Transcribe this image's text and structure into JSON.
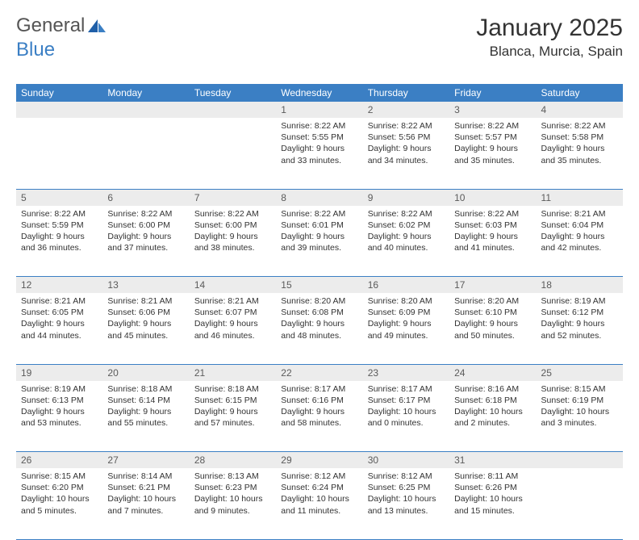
{
  "logo": {
    "word1": "General",
    "word2": "Blue"
  },
  "title": {
    "month": "January 2025",
    "location": "Blanca, Murcia, Spain"
  },
  "colors": {
    "header_bg": "#3b7fc4",
    "header_text": "#ffffff",
    "daynum_bg": "#ececec",
    "border": "#3b7fc4",
    "body_text": "#333333"
  },
  "day_headers": [
    "Sunday",
    "Monday",
    "Tuesday",
    "Wednesday",
    "Thursday",
    "Friday",
    "Saturday"
  ],
  "weeks": [
    {
      "nums": [
        "",
        "",
        "",
        "1",
        "2",
        "3",
        "4"
      ],
      "cells": [
        null,
        null,
        null,
        {
          "sunrise": "Sunrise: 8:22 AM",
          "sunset": "Sunset: 5:55 PM",
          "daylight": "Daylight: 9 hours and 33 minutes."
        },
        {
          "sunrise": "Sunrise: 8:22 AM",
          "sunset": "Sunset: 5:56 PM",
          "daylight": "Daylight: 9 hours and 34 minutes."
        },
        {
          "sunrise": "Sunrise: 8:22 AM",
          "sunset": "Sunset: 5:57 PM",
          "daylight": "Daylight: 9 hours and 35 minutes."
        },
        {
          "sunrise": "Sunrise: 8:22 AM",
          "sunset": "Sunset: 5:58 PM",
          "daylight": "Daylight: 9 hours and 35 minutes."
        }
      ]
    },
    {
      "nums": [
        "5",
        "6",
        "7",
        "8",
        "9",
        "10",
        "11"
      ],
      "cells": [
        {
          "sunrise": "Sunrise: 8:22 AM",
          "sunset": "Sunset: 5:59 PM",
          "daylight": "Daylight: 9 hours and 36 minutes."
        },
        {
          "sunrise": "Sunrise: 8:22 AM",
          "sunset": "Sunset: 6:00 PM",
          "daylight": "Daylight: 9 hours and 37 minutes."
        },
        {
          "sunrise": "Sunrise: 8:22 AM",
          "sunset": "Sunset: 6:00 PM",
          "daylight": "Daylight: 9 hours and 38 minutes."
        },
        {
          "sunrise": "Sunrise: 8:22 AM",
          "sunset": "Sunset: 6:01 PM",
          "daylight": "Daylight: 9 hours and 39 minutes."
        },
        {
          "sunrise": "Sunrise: 8:22 AM",
          "sunset": "Sunset: 6:02 PM",
          "daylight": "Daylight: 9 hours and 40 minutes."
        },
        {
          "sunrise": "Sunrise: 8:22 AM",
          "sunset": "Sunset: 6:03 PM",
          "daylight": "Daylight: 9 hours and 41 minutes."
        },
        {
          "sunrise": "Sunrise: 8:21 AM",
          "sunset": "Sunset: 6:04 PM",
          "daylight": "Daylight: 9 hours and 42 minutes."
        }
      ]
    },
    {
      "nums": [
        "12",
        "13",
        "14",
        "15",
        "16",
        "17",
        "18"
      ],
      "cells": [
        {
          "sunrise": "Sunrise: 8:21 AM",
          "sunset": "Sunset: 6:05 PM",
          "daylight": "Daylight: 9 hours and 44 minutes."
        },
        {
          "sunrise": "Sunrise: 8:21 AM",
          "sunset": "Sunset: 6:06 PM",
          "daylight": "Daylight: 9 hours and 45 minutes."
        },
        {
          "sunrise": "Sunrise: 8:21 AM",
          "sunset": "Sunset: 6:07 PM",
          "daylight": "Daylight: 9 hours and 46 minutes."
        },
        {
          "sunrise": "Sunrise: 8:20 AM",
          "sunset": "Sunset: 6:08 PM",
          "daylight": "Daylight: 9 hours and 48 minutes."
        },
        {
          "sunrise": "Sunrise: 8:20 AM",
          "sunset": "Sunset: 6:09 PM",
          "daylight": "Daylight: 9 hours and 49 minutes."
        },
        {
          "sunrise": "Sunrise: 8:20 AM",
          "sunset": "Sunset: 6:10 PM",
          "daylight": "Daylight: 9 hours and 50 minutes."
        },
        {
          "sunrise": "Sunrise: 8:19 AM",
          "sunset": "Sunset: 6:12 PM",
          "daylight": "Daylight: 9 hours and 52 minutes."
        }
      ]
    },
    {
      "nums": [
        "19",
        "20",
        "21",
        "22",
        "23",
        "24",
        "25"
      ],
      "cells": [
        {
          "sunrise": "Sunrise: 8:19 AM",
          "sunset": "Sunset: 6:13 PM",
          "daylight": "Daylight: 9 hours and 53 minutes."
        },
        {
          "sunrise": "Sunrise: 8:18 AM",
          "sunset": "Sunset: 6:14 PM",
          "daylight": "Daylight: 9 hours and 55 minutes."
        },
        {
          "sunrise": "Sunrise: 8:18 AM",
          "sunset": "Sunset: 6:15 PM",
          "daylight": "Daylight: 9 hours and 57 minutes."
        },
        {
          "sunrise": "Sunrise: 8:17 AM",
          "sunset": "Sunset: 6:16 PM",
          "daylight": "Daylight: 9 hours and 58 minutes."
        },
        {
          "sunrise": "Sunrise: 8:17 AM",
          "sunset": "Sunset: 6:17 PM",
          "daylight": "Daylight: 10 hours and 0 minutes."
        },
        {
          "sunrise": "Sunrise: 8:16 AM",
          "sunset": "Sunset: 6:18 PM",
          "daylight": "Daylight: 10 hours and 2 minutes."
        },
        {
          "sunrise": "Sunrise: 8:15 AM",
          "sunset": "Sunset: 6:19 PM",
          "daylight": "Daylight: 10 hours and 3 minutes."
        }
      ]
    },
    {
      "nums": [
        "26",
        "27",
        "28",
        "29",
        "30",
        "31",
        ""
      ],
      "cells": [
        {
          "sunrise": "Sunrise: 8:15 AM",
          "sunset": "Sunset: 6:20 PM",
          "daylight": "Daylight: 10 hours and 5 minutes."
        },
        {
          "sunrise": "Sunrise: 8:14 AM",
          "sunset": "Sunset: 6:21 PM",
          "daylight": "Daylight: 10 hours and 7 minutes."
        },
        {
          "sunrise": "Sunrise: 8:13 AM",
          "sunset": "Sunset: 6:23 PM",
          "daylight": "Daylight: 10 hours and 9 minutes."
        },
        {
          "sunrise": "Sunrise: 8:12 AM",
          "sunset": "Sunset: 6:24 PM",
          "daylight": "Daylight: 10 hours and 11 minutes."
        },
        {
          "sunrise": "Sunrise: 8:12 AM",
          "sunset": "Sunset: 6:25 PM",
          "daylight": "Daylight: 10 hours and 13 minutes."
        },
        {
          "sunrise": "Sunrise: 8:11 AM",
          "sunset": "Sunset: 6:26 PM",
          "daylight": "Daylight: 10 hours and 15 minutes."
        },
        null
      ]
    }
  ]
}
